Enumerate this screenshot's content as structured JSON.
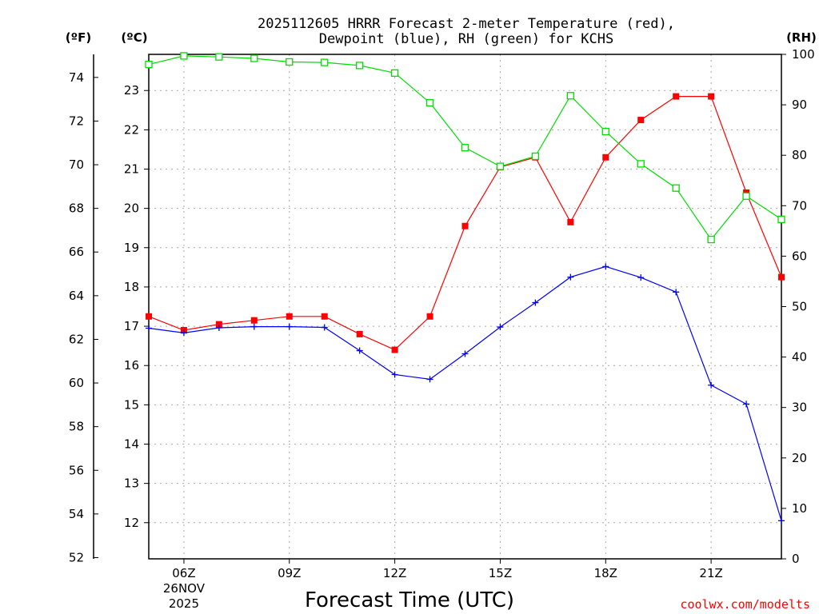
{
  "chart_data": {
    "type": "line",
    "title_line1": "2025112605 HRRR Forecast 2-meter Temperature (red),",
    "title_line2": "Dewpoint (blue), RH (green) for KCHS",
    "xlabel": "Forecast Time (UTC)",
    "credit": "coolwx.com/modelts",
    "units": {
      "fahrenheit": "(ºF)",
      "celsius": "(ºC)",
      "rh": "(RH)"
    },
    "x_hours_range": [
      5,
      23
    ],
    "x_ticks": [
      {
        "hour": 6,
        "label": "06Z",
        "sub1": "26NOV",
        "sub2": "2025"
      },
      {
        "hour": 9,
        "label": "09Z"
      },
      {
        "hour": 12,
        "label": "12Z"
      },
      {
        "hour": 15,
        "label": "15Z"
      },
      {
        "hour": 18,
        "label": "18Z"
      },
      {
        "hour": 21,
        "label": "21Z"
      }
    ],
    "celsius_ylim": [
      11.08,
      23.92
    ],
    "celsius_ticks": [
      12,
      13,
      14,
      15,
      16,
      17,
      18,
      19,
      20,
      21,
      22,
      23
    ],
    "fahrenheit_ticks": [
      52,
      54,
      56,
      58,
      60,
      62,
      64,
      66,
      68,
      70,
      72,
      74
    ],
    "rh_ylim": [
      0,
      100
    ],
    "rh_ticks": [
      0,
      10,
      20,
      30,
      40,
      50,
      60,
      70,
      80,
      90,
      100
    ],
    "hours": [
      5,
      6,
      7,
      8,
      9,
      10,
      11,
      12,
      13,
      14,
      15,
      16,
      17,
      18,
      19,
      20,
      21,
      22,
      23
    ],
    "series": [
      {
        "name": "Temperature",
        "axis": "celsius",
        "color": "#ff0000",
        "marker": "filled-square",
        "values": [
          17.25,
          16.9,
          17.05,
          17.15,
          17.25,
          17.25,
          16.8,
          16.4,
          17.25,
          19.55,
          21.05,
          21.3,
          19.65,
          21.3,
          22.25,
          22.85,
          22.85,
          20.4,
          18.25
        ]
      },
      {
        "name": "Dewpoint",
        "axis": "celsius",
        "color": "#0000ff",
        "marker": "plus",
        "values": [
          16.95,
          16.83,
          16.96,
          16.99,
          16.99,
          16.97,
          16.38,
          15.77,
          15.65,
          16.3,
          16.98,
          17.6,
          18.25,
          18.52,
          18.24,
          17.87,
          15.5,
          15.02,
          12.05
        ]
      },
      {
        "name": "RH",
        "axis": "rh",
        "color": "#00dd00",
        "marker": "open-square",
        "values": [
          98,
          99.7,
          99.5,
          99.2,
          98.5,
          98.4,
          97.8,
          96.3,
          90.4,
          81.5,
          77.8,
          79.8,
          91.8,
          84.7,
          78.3,
          73.5,
          63.3,
          71.9,
          67.3
        ]
      }
    ]
  }
}
